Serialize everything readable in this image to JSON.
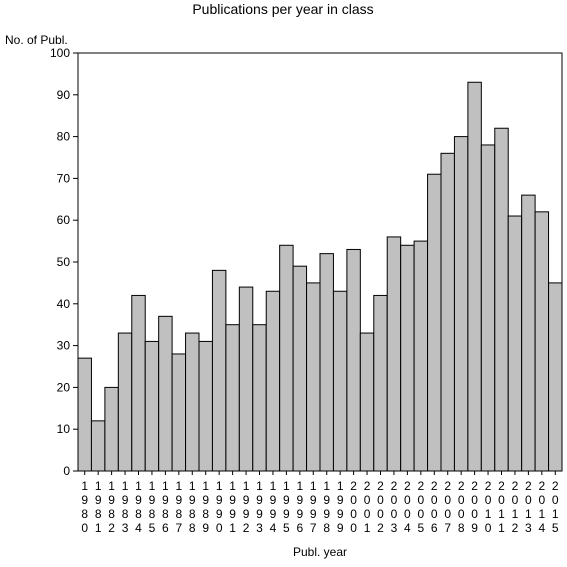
{
  "chart_data": {
    "type": "bar",
    "title": "Publications per year in class",
    "ylabel": "No. of Publ.",
    "xlabel": "Publ. year",
    "ylim": [
      0,
      100
    ],
    "yticks": [
      0,
      10,
      20,
      30,
      40,
      50,
      60,
      70,
      80,
      90,
      100
    ],
    "grid": false,
    "bar_color": "#c0c0c0",
    "edge_color": "#000000",
    "categories": [
      "1980",
      "1981",
      "1982",
      "1983",
      "1984",
      "1985",
      "1986",
      "1987",
      "1988",
      "1989",
      "1990",
      "1991",
      "1992",
      "1993",
      "1994",
      "1995",
      "1996",
      "1997",
      "1998",
      "1999",
      "2000",
      "2001",
      "2002",
      "2003",
      "2004",
      "2005",
      "2006",
      "2007",
      "2008",
      "2009",
      "2010",
      "2011",
      "2012",
      "2013",
      "2014",
      "2015"
    ],
    "values": [
      27,
      12,
      20,
      33,
      42,
      31,
      37,
      28,
      33,
      31,
      48,
      35,
      44,
      35,
      43,
      54,
      49,
      45,
      52,
      43,
      53,
      33,
      42,
      56,
      54,
      55,
      71,
      76,
      80,
      93,
      78,
      82,
      61,
      66,
      62,
      45
    ]
  }
}
